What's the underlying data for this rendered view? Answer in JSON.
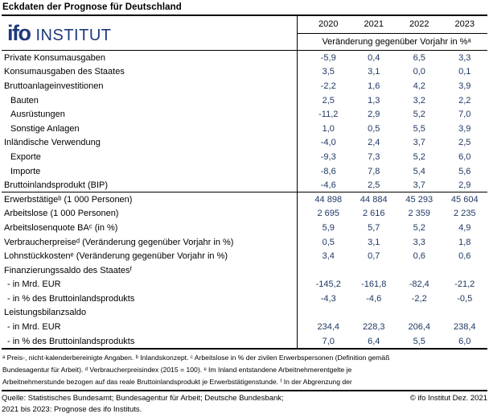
{
  "title": "Eckdaten der Prognose für Deutschland",
  "colors": {
    "logo_blue": "#1e3a7b",
    "number_blue": "#1f3864"
  },
  "logo": {
    "ifo": "ifo",
    "institut": "INSTITUT"
  },
  "table": {
    "header": {
      "years": [
        "2020",
        "2021",
        "2022",
        "2023"
      ],
      "unit": "Veränderung gegenüber Vorjahr in %ᵃ"
    },
    "rows": [
      {
        "label": "Private Konsumausgaben",
        "indent": 0,
        "values": [
          "-5,9",
          "0,4",
          "6,5",
          "3,3"
        ]
      },
      {
        "label": "Konsumausgaben des Staates",
        "indent": 0,
        "values": [
          "3,5",
          "3,1",
          "0,0",
          "0,1"
        ]
      },
      {
        "label": "Bruttoanlageinvestitionen",
        "indent": 0,
        "values": [
          "-2,2",
          "1,6",
          "4,2",
          "3,9"
        ]
      },
      {
        "label": "Bauten",
        "indent": 1,
        "values": [
          "2,5",
          "1,3",
          "3,2",
          "2,2"
        ]
      },
      {
        "label": "Ausrüstungen",
        "indent": 1,
        "values": [
          "-11,2",
          "2,9",
          "5,2",
          "7,0"
        ]
      },
      {
        "label": "Sonstige Anlagen",
        "indent": 1,
        "values": [
          "1,0",
          "0,5",
          "5,5",
          "3,9"
        ]
      },
      {
        "label": "Inländische Verwendung",
        "indent": 0,
        "values": [
          "-4,0",
          "2,4",
          "3,7",
          "2,5"
        ]
      },
      {
        "label": "Exporte",
        "indent": 1,
        "values": [
          "-9,3",
          "7,3",
          "5,2",
          "6,0"
        ]
      },
      {
        "label": "Importe",
        "indent": 1,
        "values": [
          "-8,6",
          "7,8",
          "5,4",
          "5,6"
        ]
      },
      {
        "label": "Bruttoinlandsprodukt (BIP)",
        "indent": 0,
        "values": [
          "-4,6",
          "2,5",
          "3,7",
          "2,9"
        ],
        "divider_after": true
      },
      {
        "label": "Erwerbstätigeᵇ (1 000 Personen)",
        "indent": 0,
        "values": [
          "44 898",
          "44 884",
          "45 293",
          "45 604"
        ]
      },
      {
        "label": "Arbeitslose (1 000 Personen)",
        "indent": 0,
        "values": [
          "2 695",
          "2 616",
          "2 359",
          "2 235"
        ]
      },
      {
        "label": "Arbeitslosenquote BAᶜ (in %)",
        "indent": 0,
        "values": [
          "5,9",
          "5,7",
          "5,2",
          "4,9"
        ]
      },
      {
        "label": "Verbraucherpreiseᵈ (Veränderung gegenüber Vorjahr in %)",
        "indent": 0,
        "values": [
          "0,5",
          "3,1",
          "3,3",
          "1,8"
        ]
      },
      {
        "label": "Lohnstückkostenᵉ (Veränderung gegenüber Vorjahr in %)",
        "indent": 0,
        "values": [
          "3,4",
          "0,7",
          "0,6",
          "0,6"
        ]
      },
      {
        "label": "Finanzierungssaldo des Staatesᶠ",
        "indent": 0,
        "values": [
          "",
          "",
          "",
          ""
        ]
      },
      {
        "label": "- in Mrd. EUR",
        "indent": 2,
        "values": [
          "-145,2",
          "-161,8",
          "-82,4",
          "-21,2"
        ]
      },
      {
        "label": "- in % des Bruttoinlandsprodukts",
        "indent": 2,
        "values": [
          "-4,3",
          "-4,6",
          "-2,2",
          "-0,5"
        ]
      },
      {
        "label": "Leistungsbilanzsaldo",
        "indent": 0,
        "values": [
          "",
          "",
          "",
          ""
        ]
      },
      {
        "label": "- in Mrd. EUR",
        "indent": 2,
        "values": [
          "234,4",
          "228,3",
          "206,4",
          "238,4"
        ]
      },
      {
        "label": "- in % des Bruttoinlandsprodukts",
        "indent": 2,
        "values": [
          "7,0",
          "6,4",
          "5,5",
          "6,0"
        ]
      }
    ]
  },
  "footnotes": [
    "ᵃ Preis-, nicht-kalenderbereinigte Angaben. ᵇ Inlandskonzept. ᶜ Arbeitslose in % der zivilen Erwerbspersonen (Definition gemäß",
    "Bundesagentur für Arbeit). ᵈ Verbraucherpreisindex (2015 = 100). ᵉ Im Inland entstandene Arbeitnehmerentgelte je",
    "Arbeitnehmerstunde bezogen auf das reale Bruttoinlandsprodukt je Erwerbstätigenstunde. ᶠ In der Abgrenzung der"
  ],
  "source": {
    "line1_left": "Quelle: Statistisches Bundesamt; Bundesagentur für Arbeit; Deutsche Bundesbank;",
    "line1_right": "© ifo Institut Dez. 2021",
    "line2": "2021 bis 2023: Prognose des ifo Instituts."
  }
}
